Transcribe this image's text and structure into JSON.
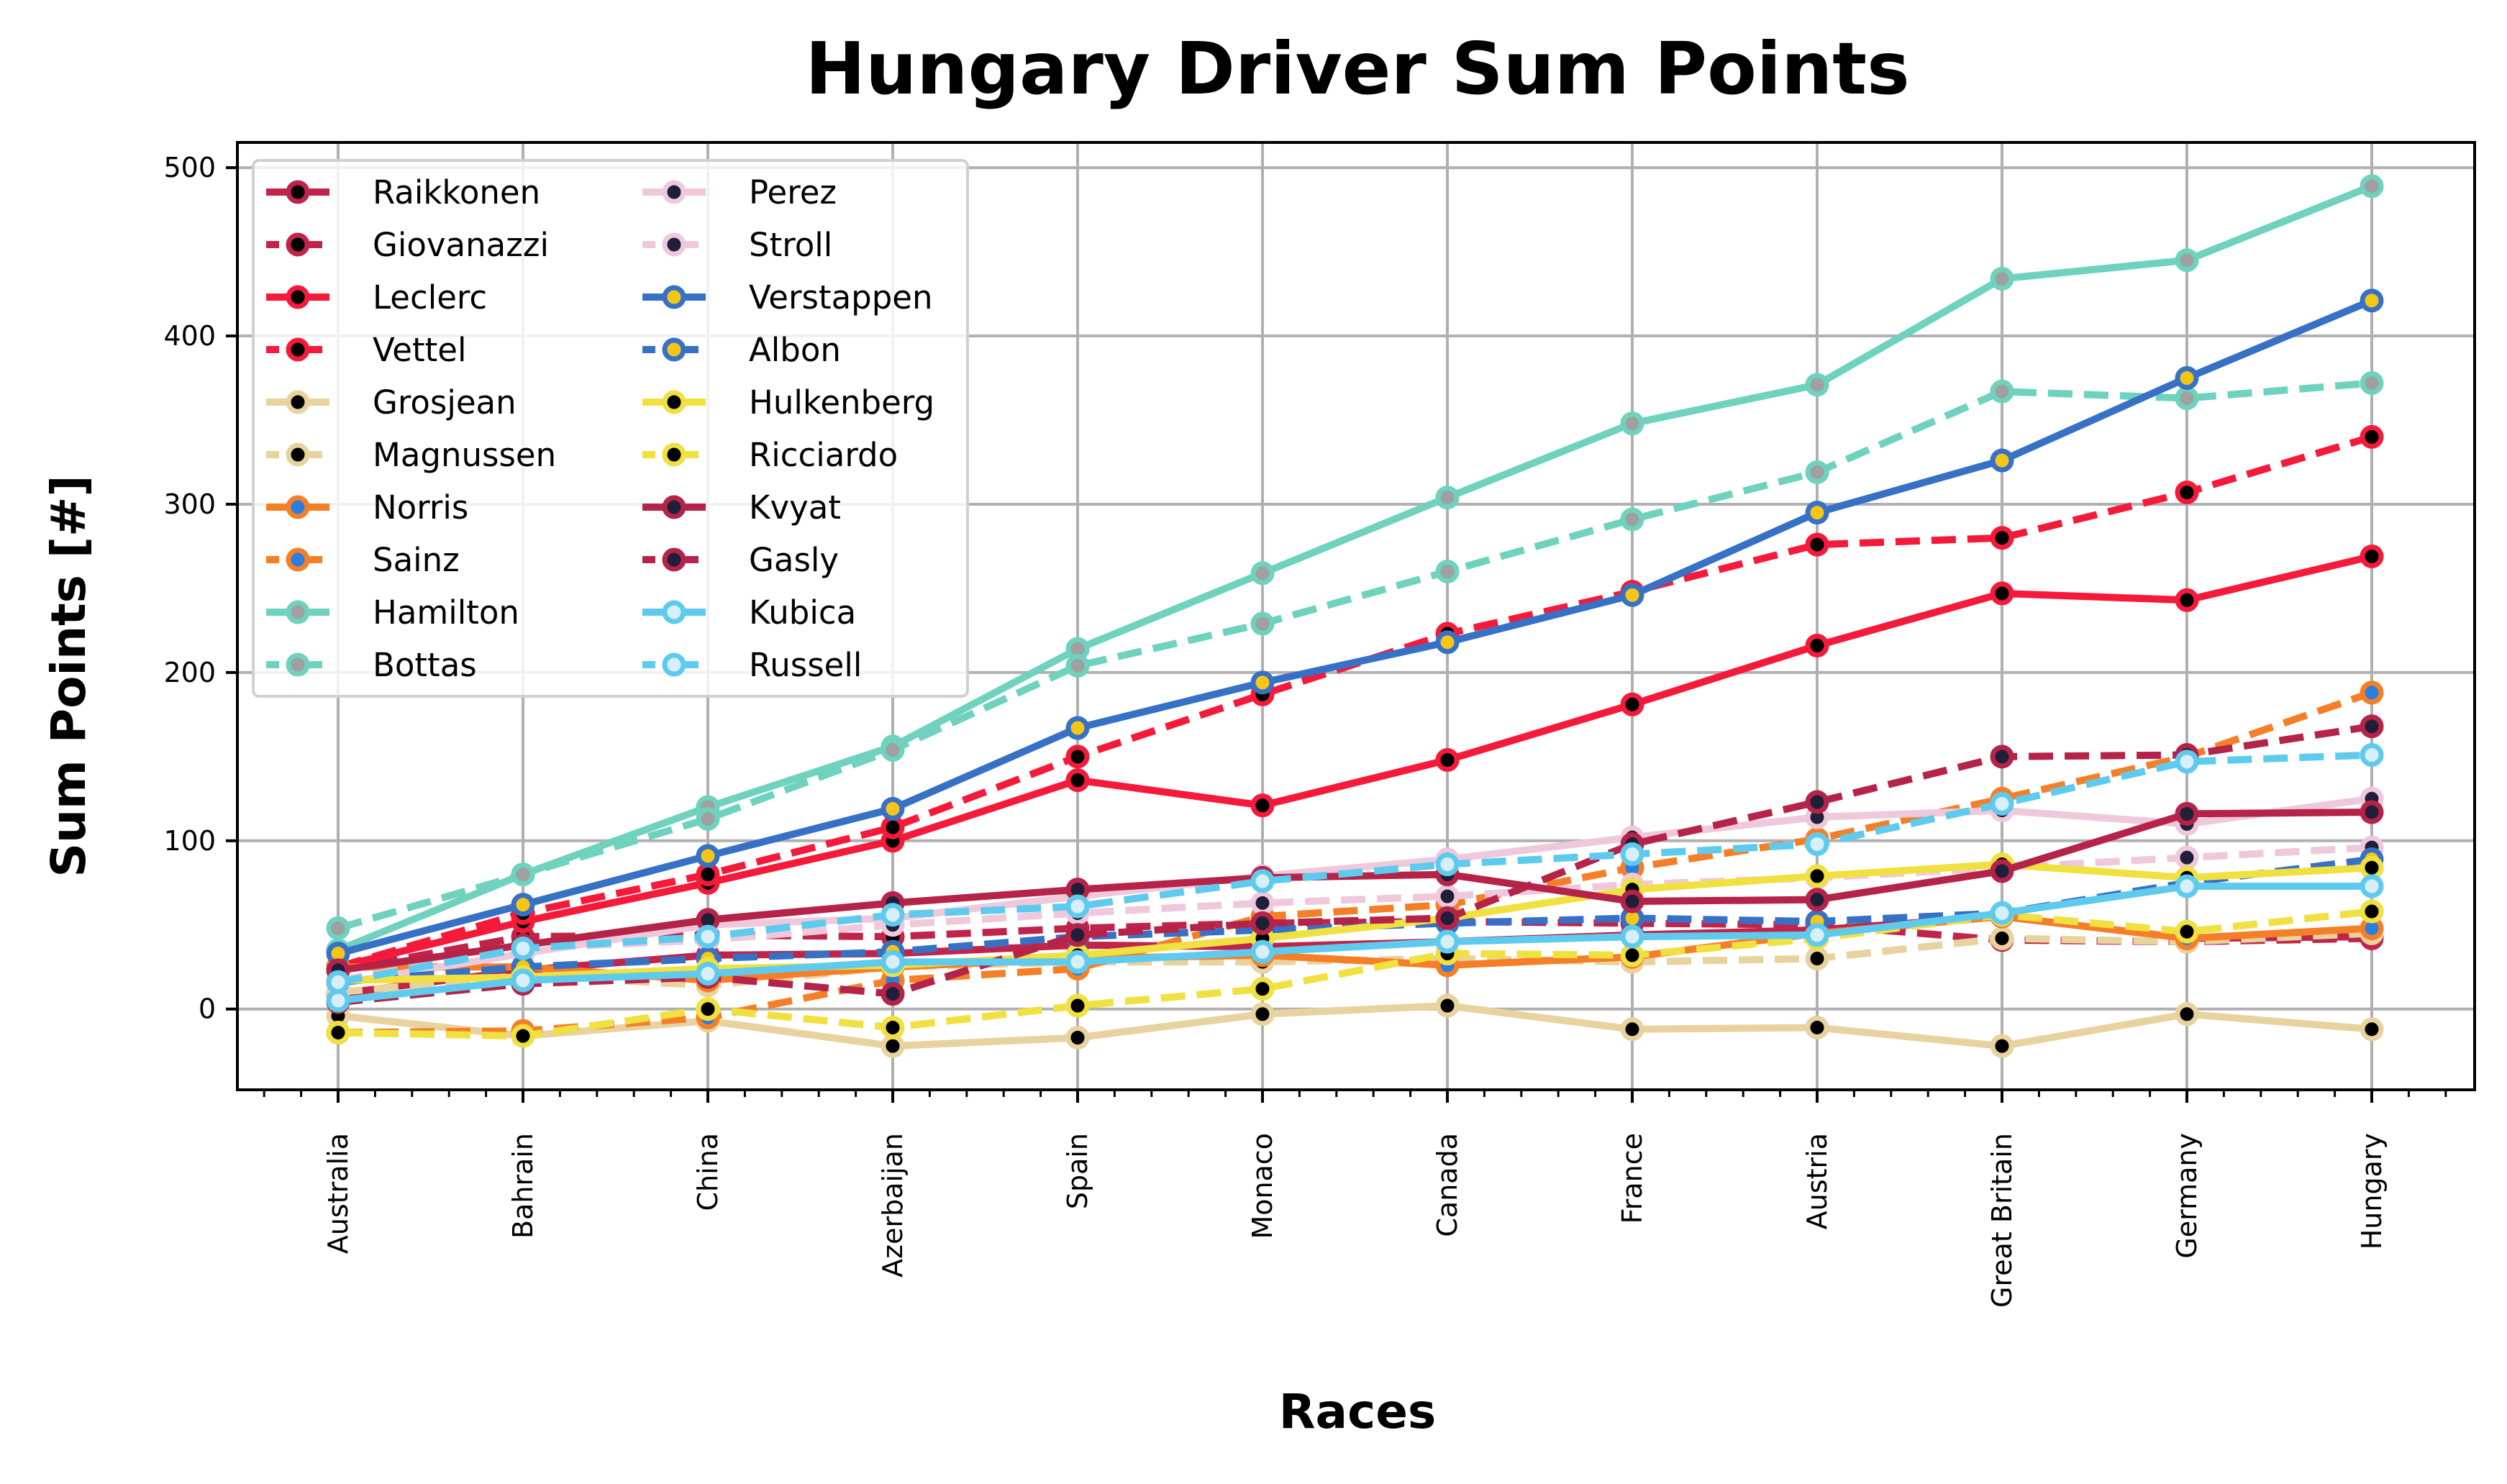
{
  "chart_data": {
    "type": "line",
    "title": "Hungary Driver Sum Points",
    "xlabel": "Races",
    "ylabel": "Sum Points [#]",
    "categories": [
      "Australia",
      "Bahrain",
      "China",
      "Azerbaijan",
      "Spain",
      "Monaco",
      "Canada",
      "France",
      "Austria",
      "Great Britain",
      "Germany",
      "Hungary"
    ],
    "yticks": [
      0,
      100,
      200,
      300,
      400,
      500
    ],
    "ylim": [
      -48,
      515
    ],
    "grid": true,
    "legend_position": "top-left",
    "series": [
      {
        "name": "Raikkonen",
        "style": "solid",
        "color": "#c1244a",
        "marker_fill": "#000000",
        "values": [
          9,
          23,
          32,
          33,
          38,
          37,
          40,
          44,
          47,
          55,
          42,
          43
        ]
      },
      {
        "name": "Giovanazzi",
        "style": "dashed",
        "color": "#c1244a",
        "marker_fill": "#000000",
        "values": [
          23,
          43,
          44,
          43,
          48,
          51,
          52,
          51,
          50,
          41,
          40,
          42
        ]
      },
      {
        "name": "Leclerc",
        "style": "solid",
        "color": "#f51a3a",
        "marker_fill": "#000000",
        "values": [
          25,
          52,
          75,
          100,
          136,
          121,
          148,
          181,
          216,
          247,
          243,
          269
        ]
      },
      {
        "name": "Vettel",
        "style": "dashed",
        "color": "#f51a3a",
        "marker_fill": "#000000",
        "values": [
          25,
          57,
          80,
          108,
          150,
          187,
          223,
          248,
          276,
          280,
          307,
          340
        ]
      },
      {
        "name": "Grosjean",
        "style": "solid",
        "color": "#e8d29e",
        "marker_fill": "#000000",
        "values": [
          -4,
          -16,
          -7,
          -22,
          -17,
          -3,
          2,
          -12,
          -11,
          -22,
          -3,
          -12
        ]
      },
      {
        "name": "Magnussen",
        "style": "dashed",
        "color": "#e8d29e",
        "marker_fill": "#000000",
        "values": [
          10,
          20,
          14,
          25,
          28,
          28,
          30,
          28,
          30,
          42,
          40,
          45
        ]
      },
      {
        "name": "Norris",
        "style": "solid",
        "color": "#f57f27",
        "marker_fill": "#2a7fde",
        "values": [
          25,
          25,
          17,
          25,
          30,
          32,
          26,
          31,
          45,
          55,
          42,
          48
        ]
      },
      {
        "name": "Sainz",
        "style": "dashed",
        "color": "#f57f27",
        "marker_fill": "#2a7fde",
        "values": [
          -14,
          -13,
          -5,
          17,
          24,
          55,
          62,
          84,
          101,
          125,
          150,
          188
        ]
      },
      {
        "name": "Hamilton",
        "style": "solid",
        "color": "#6ed2be",
        "marker_fill": "#a0a0a0",
        "values": [
          35,
          80,
          120,
          156,
          214,
          259,
          304,
          348,
          371,
          434,
          445,
          489
        ]
      },
      {
        "name": "Bottas",
        "style": "dashed",
        "color": "#6ed2be",
        "marker_fill": "#a0a0a0",
        "values": [
          48,
          80,
          113,
          154,
          204,
          229,
          260,
          291,
          319,
          367,
          363,
          372
        ]
      },
      {
        "name": "Perez",
        "style": "solid",
        "color": "#f0c8dc",
        "marker_fill": "#1f1f3a",
        "values": [
          15,
          33,
          50,
          54,
          67,
          79,
          89,
          102,
          114,
          118,
          110,
          125
        ]
      },
      {
        "name": "Stroll",
        "style": "dashed",
        "color": "#f0c8dc",
        "marker_fill": "#1f1f3a",
        "values": [
          17,
          36,
          41,
          50,
          57,
          63,
          67,
          74,
          78,
          84,
          90,
          96
        ]
      },
      {
        "name": "Verstappen",
        "style": "solid",
        "color": "#3671c6",
        "marker_fill": "#f5c518",
        "values": [
          33,
          62,
          91,
          119,
          167,
          194,
          218,
          246,
          295,
          326,
          375,
          421
        ]
      },
      {
        "name": "Albon",
        "style": "dashed",
        "color": "#3671c6",
        "marker_fill": "#f5c518",
        "values": [
          16,
          25,
          30,
          34,
          43,
          47,
          51,
          54,
          52,
          57,
          75,
          89
        ]
      },
      {
        "name": "Hulkenberg",
        "style": "solid",
        "color": "#f0e040",
        "marker_fill": "#000000",
        "values": [
          17,
          19,
          24,
          26,
          32,
          42,
          54,
          71,
          79,
          86,
          78,
          84
        ]
      },
      {
        "name": "Ricciardo",
        "style": "dashed",
        "color": "#f0e040",
        "marker_fill": "#000000",
        "values": [
          -14,
          -16,
          0,
          -11,
          2,
          12,
          33,
          32,
          42,
          56,
          46,
          58
        ]
      },
      {
        "name": "Kvyat",
        "style": "solid",
        "color": "#b52348",
        "marker_fill": "#1f1f3a",
        "values": [
          23,
          38,
          53,
          63,
          71,
          78,
          80,
          64,
          65,
          82,
          116,
          117
        ]
      },
      {
        "name": "Gasly",
        "style": "dashed",
        "color": "#b52348",
        "marker_fill": "#1f1f3a",
        "values": [
          4,
          15,
          19,
          9,
          44,
          51,
          54,
          98,
          123,
          150,
          151,
          168
        ]
      },
      {
        "name": "Kubica",
        "style": "solid",
        "color": "#5ecbee",
        "marker_fill": "#d8eef8",
        "values": [
          5,
          17,
          21,
          28,
          28,
          34,
          40,
          43,
          44,
          57,
          73,
          73
        ]
      },
      {
        "name": "Russell",
        "style": "dashed",
        "color": "#5ecbee",
        "marker_fill": "#d8eef8",
        "values": [
          16,
          36,
          43,
          56,
          61,
          76,
          86,
          92,
          98,
          122,
          147,
          151
        ]
      }
    ]
  }
}
